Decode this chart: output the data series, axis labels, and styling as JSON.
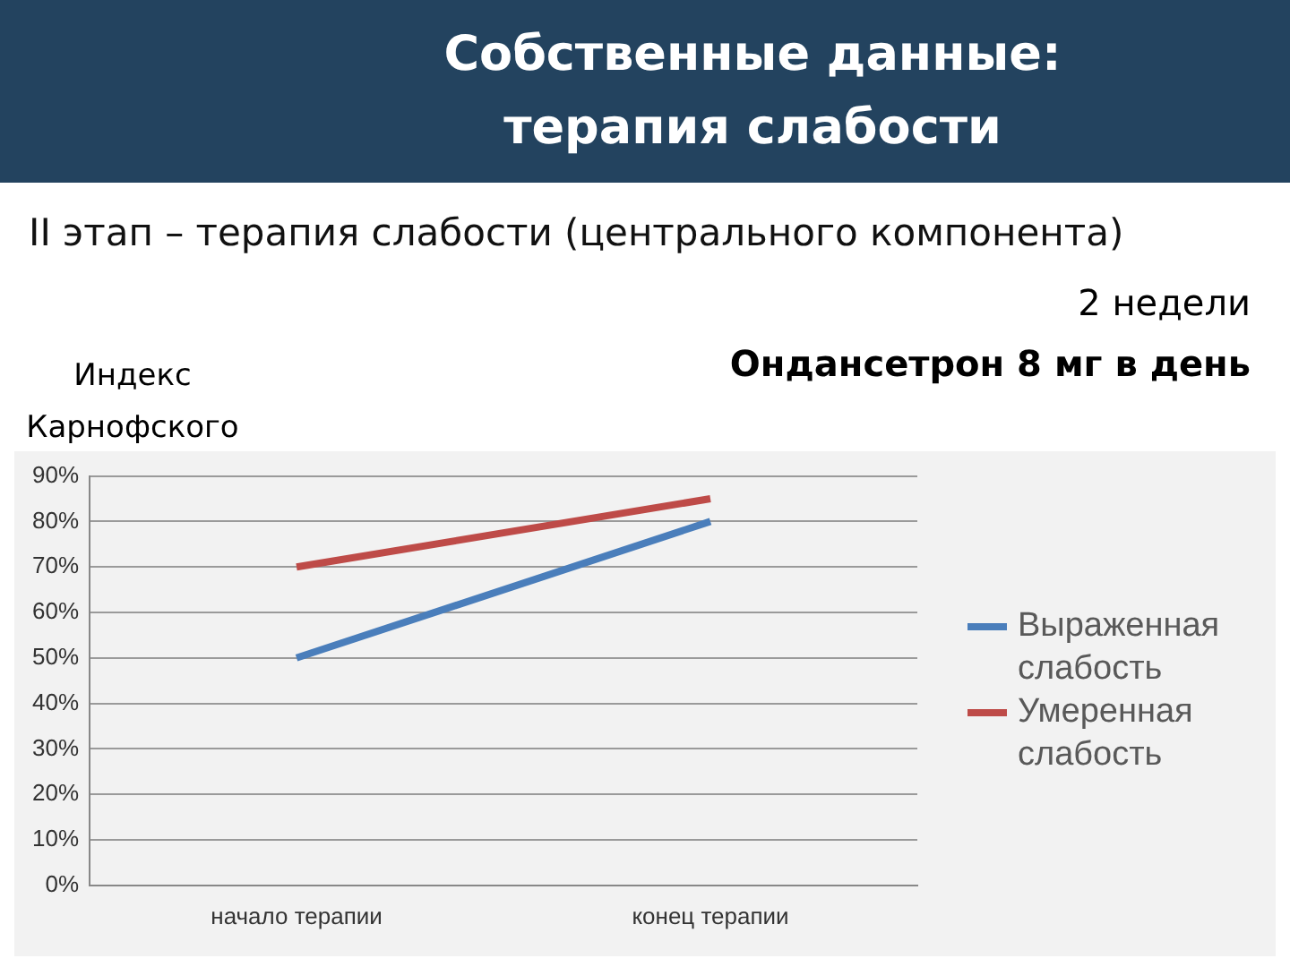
{
  "chart_data": {
    "type": "line",
    "title": "Собственные данные:\nтерапия слабости",
    "subtitle": "II этап – терапия слабости (центрального компонента)",
    "ylabel": "Индекс\nКарнофского",
    "annotations": [
      "2 недели",
      "Ондансетрон 8 мг в день"
    ],
    "categories": [
      "начало терапии",
      "конец терапии"
    ],
    "series": [
      {
        "name": "Выраженная слабость",
        "color": "#4a7ebb",
        "values": [
          50,
          80
        ]
      },
      {
        "name": "Умеренная слабость",
        "color": "#be4b48",
        "values": [
          70,
          85
        ]
      }
    ],
    "ylim": [
      0,
      90
    ],
    "yticks": [
      {
        "value": 0,
        "label": "0%"
      },
      {
        "value": 10,
        "label": "10%"
      },
      {
        "value": 20,
        "label": "20%"
      },
      {
        "value": 30,
        "label": "30%"
      },
      {
        "value": 40,
        "label": "40%"
      },
      {
        "value": 50,
        "label": "50%"
      },
      {
        "value": 60,
        "label": "60%"
      },
      {
        "value": 70,
        "label": "70%"
      },
      {
        "value": 80,
        "label": "80%"
      },
      {
        "value": 90,
        "label": "90%"
      }
    ],
    "grid": "y",
    "legend": "right",
    "marker": "none",
    "line_style": "solid"
  }
}
